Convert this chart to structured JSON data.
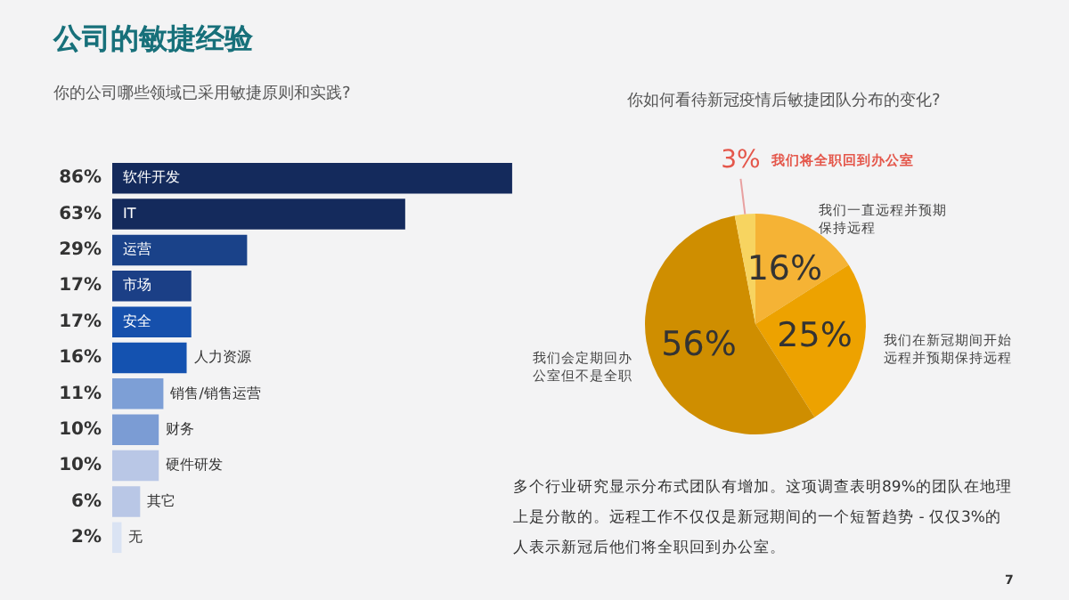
{
  "chart_data": [
    {
      "type": "bar",
      "orientation": "horizontal",
      "title": "公司的敏捷经验",
      "subtitle": "你的公司哪些领域已采用敏捷原则和实践?",
      "categories": [
        "软件开发",
        "IT",
        "运营",
        "市场",
        "安全",
        "人力资源",
        "销售/销售运营",
        "财务",
        "硬件研发",
        "其它",
        "无"
      ],
      "values": [
        86,
        63,
        29,
        17,
        17,
        16,
        11,
        10,
        10,
        6,
        2
      ],
      "value_labels": [
        "86%",
        "63%",
        "29%",
        "17%",
        "17%",
        "16%",
        "11%",
        "10%",
        "10%",
        "6%",
        "2%"
      ],
      "colors": [
        "#142a5c",
        "#142a5c",
        "#1a4289",
        "#1b3f86",
        "#1650ac",
        "#1452b0",
        "#7d9fd6",
        "#7b9cd4",
        "#b9c7e6",
        "#b9c7e6",
        "#dae3f3"
      ],
      "legend": false
    },
    {
      "type": "pie",
      "title": "你如何看待新冠疫情后敏捷团队分布的变化?",
      "categories": [
        "我们一直远程并预期保持远程",
        "我们在新冠期间开始远程并预期保持远程",
        "我们会定期回办公室但不是全职",
        "我们将全职回到办公室"
      ],
      "values": [
        16,
        25,
        56,
        3
      ],
      "value_labels": [
        "16%",
        "25%",
        "56%",
        "3%"
      ],
      "colors": [
        "#f5b335",
        "#eda200",
        "#cf8e00",
        "#f7d460"
      ],
      "legend": false,
      "annotations": [
        "多个行业研究显示分布式团队有增加。这项调查表明89%的团队在地理上是分散的。远程工作不仅仅是新冠期间的一个短暂趋势 - 仅仅3%的人表示新冠后他们将全职回到办公室。",
        "7"
      ]
    }
  ]
}
